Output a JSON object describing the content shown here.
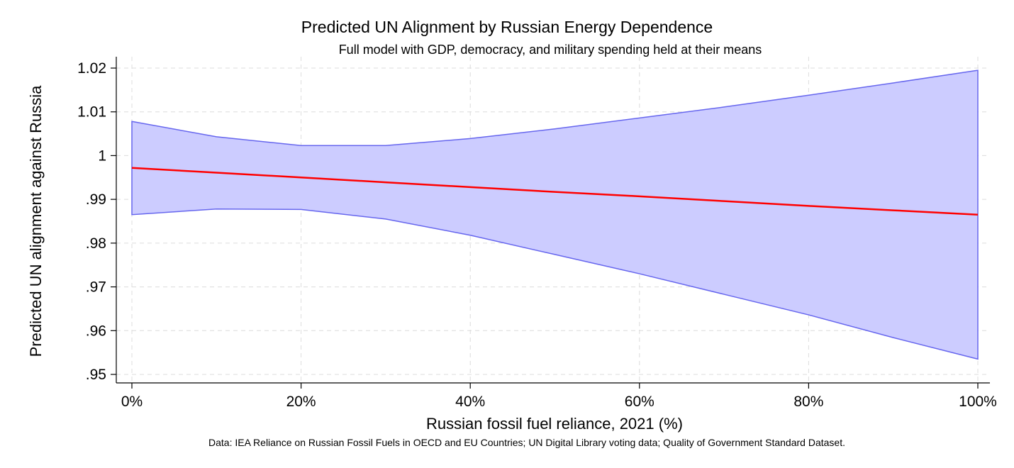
{
  "chart_data": {
    "type": "line",
    "title": "Predicted UN Alignment by Russian Energy Dependence",
    "subtitle": "Full model with GDP, democracy, and military spending held at their means",
    "xlabel": "Russian fossil fuel reliance, 2021 (%)",
    "ylabel": "Predicted UN alignment against Russia",
    "note": "Data: IEA Reliance on Russian Fossil Fuels in OECD and EU Countries; UN Digital Library voting data; Quality of Government Standard Dataset.",
    "xlim": [
      0,
      100
    ],
    "ylim": [
      0.95,
      1.02
    ],
    "x_ticks": [
      0,
      20,
      40,
      60,
      80,
      100
    ],
    "x_tick_labels": [
      "0%",
      "20%",
      "40%",
      "60%",
      "80%",
      "100%"
    ],
    "y_ticks": [
      0.95,
      0.96,
      0.97,
      0.98,
      0.99,
      1.0,
      1.01,
      1.02
    ],
    "y_tick_labels": [
      ".95",
      ".96",
      ".97",
      ".98",
      ".99",
      "1",
      "1.01",
      "1.02"
    ],
    "grid": true,
    "x": [
      0,
      10,
      20,
      30,
      40,
      50,
      60,
      70,
      80,
      90,
      100
    ],
    "series": [
      {
        "kind": "line",
        "values": [
          0.9972,
          0.9961,
          0.995,
          0.9939,
          0.9928,
          0.9917,
          0.9907,
          0.9896,
          0.9885,
          0.9875,
          0.9865
        ],
        "color": "#ff0000"
      },
      {
        "kind": "ci-band",
        "upper": [
          1.0078,
          1.0043,
          1.0023,
          1.0023,
          1.0039,
          1.0061,
          1.0086,
          1.0111,
          1.0138,
          1.0166,
          1.0195
        ],
        "lower": [
          0.9865,
          0.9878,
          0.9877,
          0.9855,
          0.9818,
          0.9774,
          0.973,
          0.9683,
          0.9636,
          0.9584,
          0.9535
        ],
        "fill": "#ccccff",
        "stroke": "#6666ee"
      }
    ]
  }
}
